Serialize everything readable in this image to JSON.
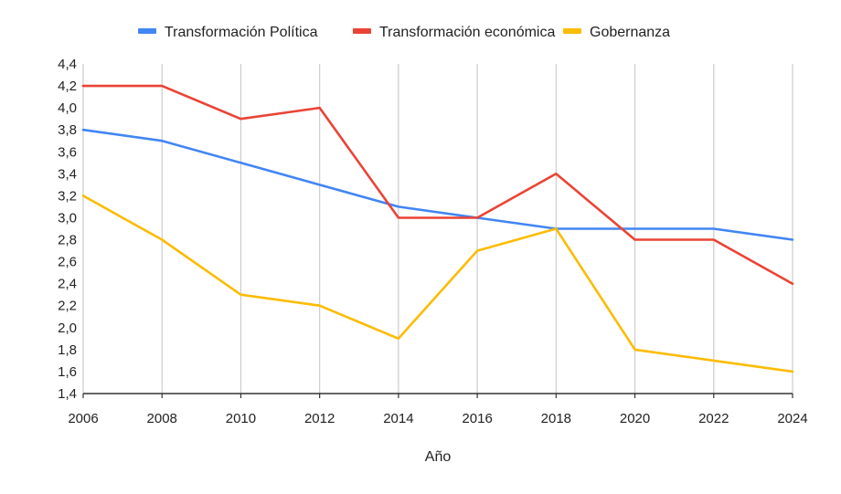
{
  "chart_data": {
    "type": "line",
    "title": "",
    "xlabel": "Año",
    "ylabel": "",
    "x": [
      "2006",
      "2008",
      "2010",
      "2012",
      "2014",
      "2016",
      "2018",
      "2020",
      "2022",
      "2024"
    ],
    "ylim": [
      1.4,
      4.4
    ],
    "yticks": [
      "1,4",
      "1,6",
      "1,8",
      "2,0",
      "2,2",
      "2,4",
      "2,6",
      "2,8",
      "3,0",
      "3,2",
      "3,4",
      "3,6",
      "3,8",
      "4,0",
      "4,2",
      "4,4"
    ],
    "grid": "vertical",
    "legend_position": "top",
    "series": [
      {
        "name": "Transformación Política",
        "color": "#4285f4",
        "values": [
          3.8,
          3.7,
          3.5,
          3.3,
          3.1,
          3.0,
          2.9,
          2.9,
          2.9,
          2.8
        ]
      },
      {
        "name": "Transformación económica",
        "color": "#ea4335",
        "values": [
          4.2,
          4.2,
          3.9,
          4.0,
          3.0,
          3.0,
          3.4,
          2.8,
          2.8,
          2.4
        ]
      },
      {
        "name": "Gobernanza",
        "color": "#fbbc04",
        "values": [
          3.2,
          2.8,
          2.3,
          2.2,
          1.9,
          2.7,
          2.9,
          1.8,
          1.7,
          1.6
        ]
      }
    ]
  }
}
